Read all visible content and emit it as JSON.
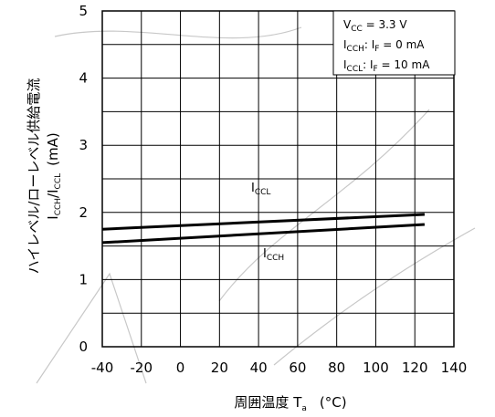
{
  "chart_data": {
    "type": "line",
    "xlabel": "周囲温度 T",
    "xlabel_sub": "a",
    "xlabel_unit": "(°C)",
    "ylabel_line1": "ハイレベル/ローレベル供給電流",
    "ylabel_line2": "I",
    "ylabel_line2_sub1": "CCH",
    "ylabel_line2_mid": "/I",
    "ylabel_line2_sub2": "CCL",
    "ylabel_line2_unit": "(mA)",
    "xlim": [
      -40,
      140
    ],
    "ylim": [
      0,
      5
    ],
    "x_ticks": [
      "-40",
      "-20",
      "0",
      "20",
      "40",
      "60",
      "80",
      "100",
      "120",
      "140"
    ],
    "y_ticks": [
      "0",
      "1",
      "2",
      "3",
      "4",
      "5"
    ],
    "grid": true,
    "series": [
      {
        "name": "I",
        "name_sub": "CCL",
        "x": [
          -40,
          125
        ],
        "y": [
          1.75,
          1.97
        ]
      },
      {
        "name": "I",
        "name_sub": "CCH",
        "x": [
          -40,
          125
        ],
        "y": [
          1.55,
          1.82
        ]
      }
    ],
    "conditions": [
      {
        "main": "V",
        "sub": "CC",
        "rest": " = 3.3 V"
      },
      {
        "main": "I",
        "sub": "CCH",
        "rest": ": I",
        "sub2": "F",
        "rest2": " = 0 mA"
      },
      {
        "main": "I",
        "sub": "CCL",
        "rest": ": I",
        "sub2": "F",
        "rest2": " = 10 mA"
      }
    ]
  }
}
